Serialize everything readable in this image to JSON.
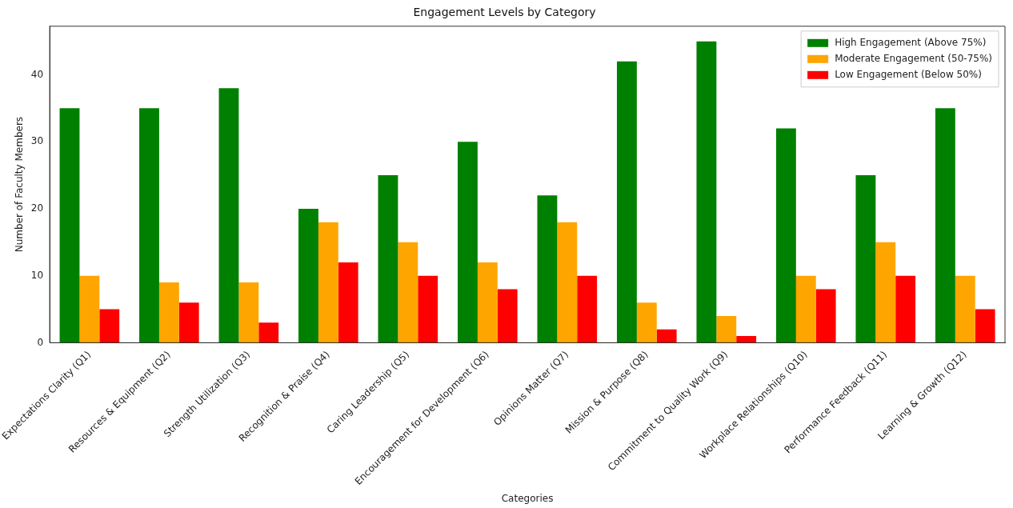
{
  "chart_data": {
    "type": "bar",
    "title": "Engagement Levels by Category",
    "xlabel": "Categories",
    "ylabel": "Number of Faculty Members",
    "categories": [
      "Expectations Clarity (Q1)",
      "Resources & Equipment (Q2)",
      "Strength Utilization (Q3)",
      "Recognition & Praise (Q4)",
      "Caring Leadership (Q5)",
      "Encouragement for Development (Q6)",
      "Opinions Matter (Q7)",
      "Mission & Purpose (Q8)",
      "Commitment to Quality Work (Q9)",
      "Workplace Relationships (Q10)",
      "Performance Feedback (Q11)",
      "Learning & Growth (Q12)"
    ],
    "series": [
      {
        "name": "High Engagement (Above 75%)",
        "color": "#008000",
        "values": [
          35,
          35,
          38,
          20,
          25,
          30,
          22,
          42,
          45,
          32,
          25,
          35
        ]
      },
      {
        "name": "Moderate Engagement (50-75%)",
        "color": "#ffa500",
        "values": [
          10,
          9,
          9,
          18,
          15,
          12,
          18,
          6,
          4,
          10,
          15,
          10
        ]
      },
      {
        "name": "Low Engagement (Below 50%)",
        "color": "#ff0000",
        "values": [
          5,
          6,
          3,
          12,
          10,
          8,
          10,
          2,
          1,
          8,
          10,
          5
        ]
      }
    ],
    "ylim": [
      0,
      47.25
    ],
    "yticks": [
      0,
      10,
      20,
      30,
      40
    ],
    "grid": false,
    "legend": "top right"
  }
}
